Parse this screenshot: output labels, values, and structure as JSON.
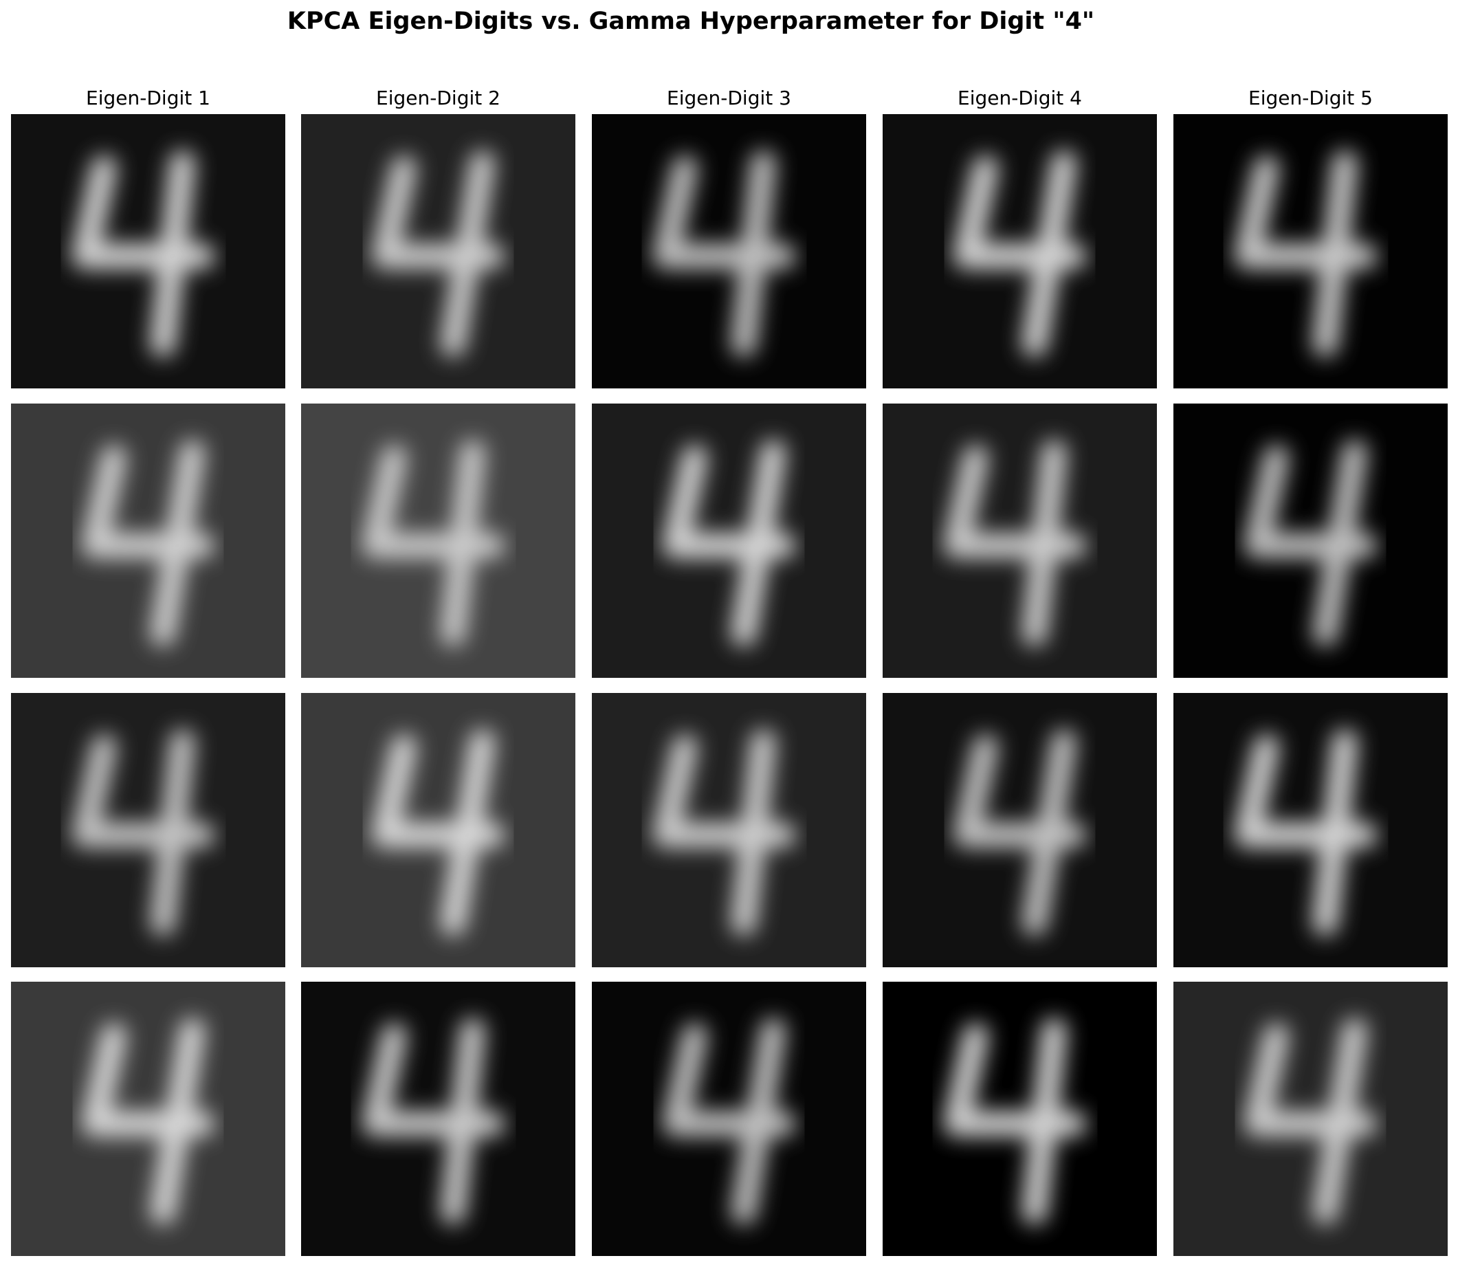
{
  "figure": {
    "title": "KPCA Eigen-Digits vs. Gamma Hyperparameter for Digit \"4\"",
    "column_titles": [
      "Eigen-Digit 1",
      "Eigen-Digit 2",
      "Eigen-Digit 3",
      "Eigen-Digit 4",
      "Eigen-Digit 5"
    ]
  }
}
